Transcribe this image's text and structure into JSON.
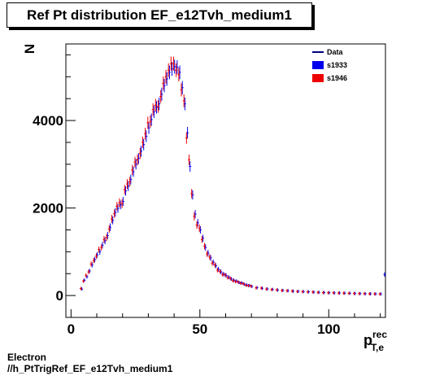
{
  "chart_data": {
    "type": "scatter",
    "title": "Ref Pt distribution EF_e12Tvh_medium1",
    "ylabel": "N",
    "xlabel": {
      "main": "p",
      "sup": "rec",
      "sub": "T,e"
    },
    "xlim": [
      -2,
      122
    ],
    "ylim": [
      -500,
      5750
    ],
    "x_ticks": [
      0,
      50,
      100
    ],
    "y_ticks": [
      0,
      2000,
      4000
    ],
    "legend": {
      "placement": "top-right",
      "entries": [
        {
          "name": "Data",
          "style": "line"
        },
        {
          "name": "s1933",
          "style": "box"
        },
        {
          "name": "s1946",
          "style": "box"
        }
      ]
    },
    "series": [
      {
        "name": "s1933",
        "color": "#0000ee",
        "points": [
          [
            4,
            150
          ],
          [
            5,
            350
          ],
          [
            6,
            430
          ],
          [
            7,
            560
          ],
          [
            8,
            700
          ],
          [
            9,
            820
          ],
          [
            10,
            930
          ],
          [
            11,
            1000
          ],
          [
            12,
            1150
          ],
          [
            13,
            1250
          ],
          [
            14,
            1370
          ],
          [
            15,
            1560
          ],
          [
            16,
            1720
          ],
          [
            17,
            1900
          ],
          [
            18,
            1990
          ],
          [
            19,
            2070
          ],
          [
            20,
            2150
          ],
          [
            21,
            2390
          ],
          [
            22,
            2500
          ],
          [
            23,
            2650
          ],
          [
            24,
            2830
          ],
          [
            25,
            3000
          ],
          [
            26,
            3130
          ],
          [
            27,
            3300
          ],
          [
            28,
            3450
          ],
          [
            29,
            3640
          ],
          [
            30,
            3830
          ],
          [
            31,
            4020
          ],
          [
            32,
            4200
          ],
          [
            33,
            4300
          ],
          [
            34,
            4380
          ],
          [
            35,
            4600
          ],
          [
            36,
            4800
          ],
          [
            37,
            4950
          ],
          [
            38,
            5100
          ],
          [
            39,
            5180
          ],
          [
            40,
            5230
          ],
          [
            41,
            5220
          ],
          [
            42,
            5100
          ],
          [
            43,
            4750
          ],
          [
            44,
            4380
          ],
          [
            45,
            3720
          ],
          [
            46,
            2950
          ],
          [
            47,
            2300
          ],
          [
            48,
            1860
          ],
          [
            49,
            1660
          ],
          [
            50,
            1500
          ],
          [
            51,
            1310
          ],
          [
            52,
            1100
          ],
          [
            53,
            970
          ],
          [
            54,
            860
          ],
          [
            55,
            760
          ],
          [
            56,
            680
          ],
          [
            57,
            600
          ],
          [
            58,
            540
          ],
          [
            59,
            490
          ],
          [
            60,
            460
          ],
          [
            61,
            420
          ],
          [
            62,
            380
          ],
          [
            63,
            350
          ],
          [
            64,
            330
          ],
          [
            65,
            300
          ],
          [
            66,
            290
          ],
          [
            67,
            260
          ],
          [
            68,
            240
          ],
          [
            69,
            230
          ],
          [
            70,
            210
          ],
          [
            72,
            180
          ],
          [
            74,
            165
          ],
          [
            76,
            150
          ],
          [
            78,
            140
          ],
          [
            80,
            125
          ],
          [
            82,
            118
          ],
          [
            84,
            110
          ],
          [
            86,
            100
          ],
          [
            88,
            95
          ],
          [
            90,
            90
          ],
          [
            92,
            85
          ],
          [
            94,
            78
          ],
          [
            96,
            72
          ],
          [
            98,
            68
          ],
          [
            100,
            65
          ],
          [
            102,
            60
          ],
          [
            104,
            58
          ],
          [
            106,
            55
          ],
          [
            108,
            52
          ],
          [
            110,
            48
          ],
          [
            112,
            45
          ],
          [
            114,
            42
          ],
          [
            116,
            40
          ],
          [
            118,
            38
          ],
          [
            120,
            35
          ],
          [
            121.5,
            480
          ]
        ]
      },
      {
        "name": "s1946",
        "color": "#ee0000",
        "points": [
          [
            4,
            160
          ],
          [
            5,
            330
          ],
          [
            6,
            460
          ],
          [
            7,
            540
          ],
          [
            8,
            720
          ],
          [
            9,
            800
          ],
          [
            10,
            900
          ],
          [
            11,
            1050
          ],
          [
            12,
            1100
          ],
          [
            13,
            1280
          ],
          [
            14,
            1330
          ],
          [
            15,
            1520
          ],
          [
            16,
            1750
          ],
          [
            17,
            1870
          ],
          [
            18,
            2040
          ],
          [
            19,
            2120
          ],
          [
            20,
            2100
          ],
          [
            21,
            2420
          ],
          [
            22,
            2550
          ],
          [
            23,
            2600
          ],
          [
            24,
            2870
          ],
          [
            25,
            3050
          ],
          [
            26,
            3100
          ],
          [
            27,
            3250
          ],
          [
            28,
            3500
          ],
          [
            29,
            3700
          ],
          [
            30,
            3950
          ],
          [
            31,
            3980
          ],
          [
            32,
            4250
          ],
          [
            33,
            4350
          ],
          [
            34,
            4320
          ],
          [
            35,
            4550
          ],
          [
            36,
            4850
          ],
          [
            37,
            5000
          ],
          [
            38,
            5150
          ],
          [
            39,
            5300
          ],
          [
            40,
            5300
          ],
          [
            41,
            5150
          ],
          [
            42,
            5050
          ],
          [
            43,
            4700
          ],
          [
            44,
            4450
          ],
          [
            45,
            3600
          ],
          [
            46,
            3100
          ],
          [
            47,
            2330
          ],
          [
            48,
            1810
          ],
          [
            49,
            1610
          ],
          [
            50,
            1540
          ],
          [
            51,
            1280
          ],
          [
            52,
            1130
          ],
          [
            53,
            950
          ],
          [
            54,
            880
          ],
          [
            55,
            740
          ],
          [
            56,
            700
          ],
          [
            57,
            580
          ],
          [
            58,
            550
          ],
          [
            59,
            480
          ],
          [
            60,
            470
          ],
          [
            61,
            410
          ],
          [
            62,
            390
          ],
          [
            63,
            340
          ],
          [
            64,
            320
          ],
          [
            65,
            310
          ],
          [
            66,
            280
          ],
          [
            67,
            270
          ],
          [
            68,
            235
          ],
          [
            69,
            225
          ],
          [
            70,
            215
          ],
          [
            72,
            175
          ],
          [
            74,
            170
          ],
          [
            76,
            148
          ],
          [
            78,
            135
          ],
          [
            80,
            128
          ],
          [
            82,
            115
          ],
          [
            84,
            108
          ],
          [
            86,
            102
          ],
          [
            88,
            92
          ],
          [
            90,
            88
          ],
          [
            92,
            82
          ],
          [
            94,
            80
          ],
          [
            96,
            70
          ],
          [
            98,
            66
          ],
          [
            100,
            63
          ],
          [
            102,
            62
          ],
          [
            104,
            56
          ],
          [
            106,
            54
          ],
          [
            108,
            50
          ],
          [
            110,
            47
          ],
          [
            112,
            44
          ],
          [
            114,
            43
          ],
          [
            116,
            39
          ],
          [
            118,
            36
          ],
          [
            120,
            34
          ]
        ]
      }
    ]
  },
  "footer": {
    "line1": "Electron",
    "line2": "//h_PtTrigRef_EF_e12Tvh_medium1"
  }
}
